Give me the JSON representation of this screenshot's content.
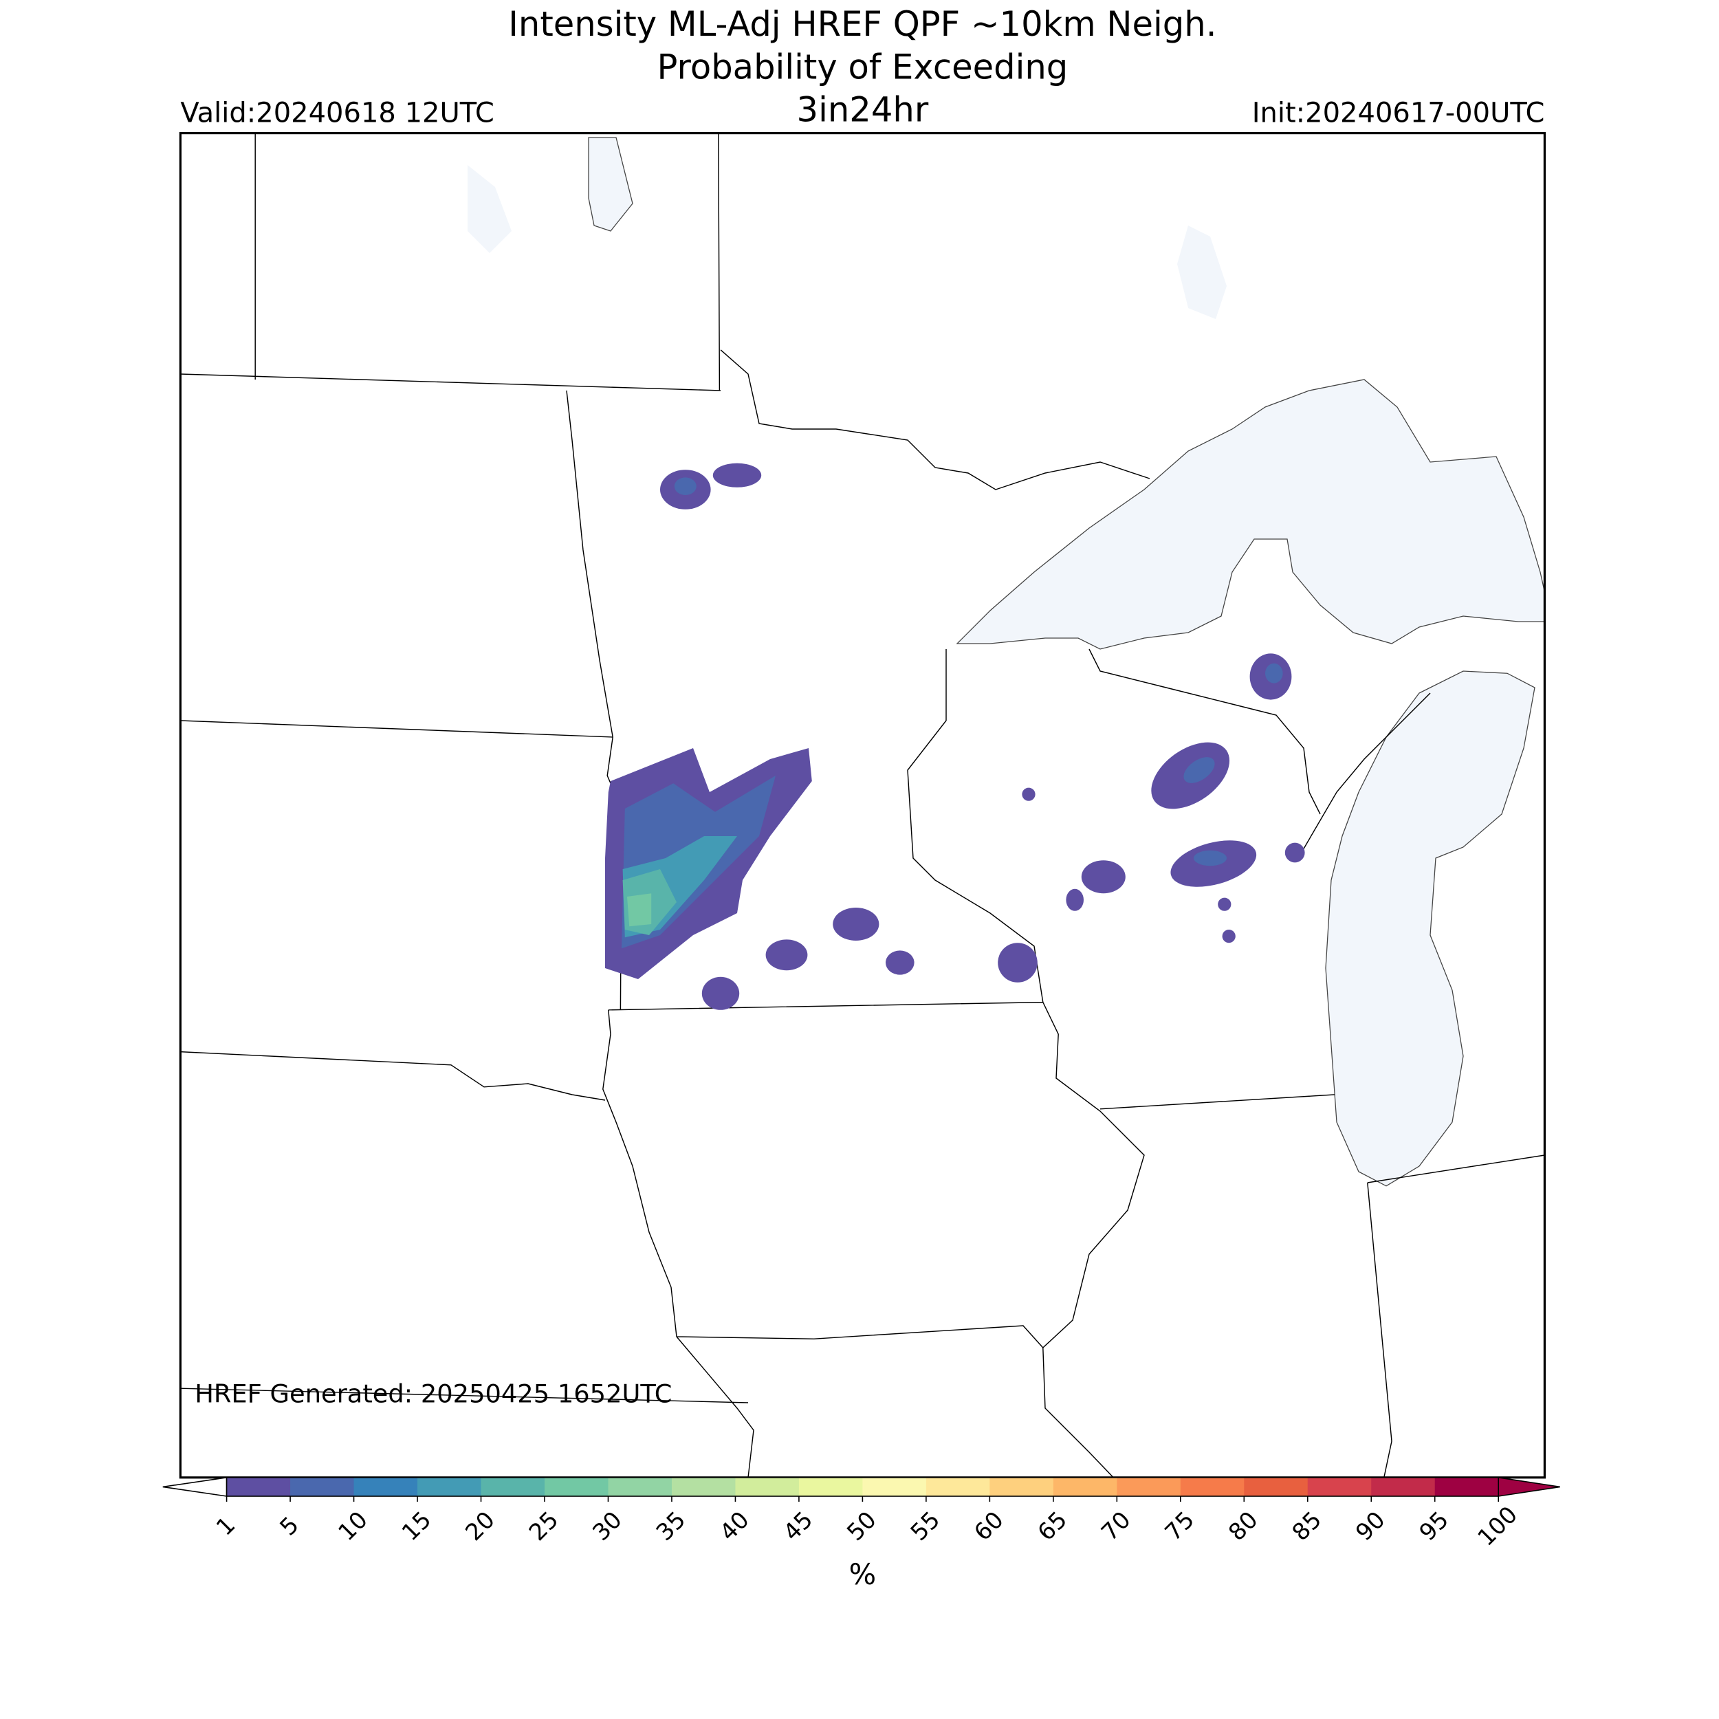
{
  "header": {
    "title": [
      "Intensity ML-Adj HREF QPF ~10km Neigh.",
      "Probability of Exceeding"
    ],
    "threshold": "3in24hr",
    "valid": "Valid:20240618 12UTC",
    "init": "Init:20240617-00UTC"
  },
  "map": {
    "footer": "HREF Generated: 20250425 1652UTC"
  },
  "colorbar": {
    "label": "%",
    "ticks": [
      1,
      5,
      10,
      15,
      20,
      25,
      30,
      35,
      40,
      45,
      50,
      55,
      60,
      65,
      70,
      75,
      80,
      85,
      90,
      95,
      100
    ],
    "colors": [
      "#5e4fa2",
      "#4a68ae",
      "#3682ba",
      "#439bb5",
      "#59b4aa",
      "#72c8a4",
      "#92d4a4",
      "#b4e0a2",
      "#d2ed9c",
      "#eaf79f",
      "#fbf8b0",
      "#fee89a",
      "#fed07e",
      "#fdb768",
      "#fb9a59",
      "#f67b4a",
      "#e8603f",
      "#d8434d",
      "#c22b4a",
      "#9e0142"
    ],
    "under_color": "#ffffff",
    "over_color": "#9e0142"
  }
}
